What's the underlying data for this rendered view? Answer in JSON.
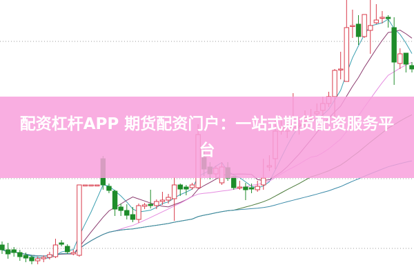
{
  "banner": {
    "title": "配资杠杆APP 期货配资门户：一站式期货配资服务平台"
  },
  "chart_data": {
    "type": "candlestick",
    "title": "",
    "ylim": [
      0,
      400
    ],
    "grid": "dotted horizontal",
    "colors": {
      "up": "#d83a4a",
      "down": "#1e8c2a",
      "ma_short": "#3a9fb0",
      "ma_mid": "#8b3a6e",
      "ma_long1": "#e58be0",
      "ma_long2": "#4a7a3a",
      "ma_long3": "#3a8aa8"
    },
    "moving_average_periods": [
      5,
      10,
      20,
      40,
      80
    ],
    "candles": [
      [
        45,
        38,
        50,
        32
      ],
      [
        38,
        32,
        48,
        25
      ],
      [
        38,
        34,
        42,
        28
      ],
      [
        34,
        28,
        38,
        22
      ],
      [
        30,
        26,
        34,
        20
      ],
      [
        27,
        22,
        30,
        17
      ],
      [
        22,
        25,
        28,
        17
      ],
      [
        25,
        27,
        30,
        20
      ],
      [
        27,
        31,
        35,
        24
      ],
      [
        28,
        45,
        54,
        26
      ],
      [
        48,
        46,
        52,
        43
      ],
      [
        43,
        35,
        46,
        32
      ],
      [
        32,
        34,
        38,
        30
      ],
      [
        30,
        132,
        132,
        28
      ],
      [
        132,
        132,
        132,
        132
      ],
      [
        132,
        132,
        132,
        132
      ],
      [
        132,
        132,
        132,
        132
      ],
      [
        170,
        132,
        174,
        125
      ],
      [
        130,
        124,
        134,
        120
      ],
      [
        123,
        97,
        125,
        87
      ],
      [
        100,
        95,
        105,
        87
      ],
      [
        95,
        88,
        104,
        82
      ],
      [
        89,
        82,
        100,
        78
      ],
      [
        82,
        102,
        105,
        77
      ],
      [
        101,
        103,
        106,
        97
      ],
      [
        104,
        102,
        125,
        98
      ],
      [
        102,
        108,
        111,
        97
      ],
      [
        108,
        110,
        122,
        103
      ],
      [
        110,
        114,
        119,
        105
      ],
      [
        112,
        132,
        143,
        80
      ],
      [
        132,
        126,
        134,
        116
      ],
      [
        129,
        126,
        132,
        117
      ],
      [
        128,
        132,
        135,
        125
      ],
      [
        128,
        205,
        220,
        126
      ],
      [
        172,
        155,
        190,
        145
      ],
      [
        158,
        148,
        165,
        140
      ],
      [
        148,
        156,
        160,
        142
      ],
      [
        135,
        158,
        165,
        132
      ],
      [
        157,
        142,
        165,
        138
      ],
      [
        144,
        128,
        145,
        125
      ],
      [
        128,
        129,
        138,
        125
      ],
      [
        129,
        125,
        135,
        110
      ],
      [
        128,
        126,
        134,
        120
      ],
      [
        125,
        130,
        138,
        122
      ],
      [
        132,
        142,
        170,
        125
      ],
      [
        158,
        160,
        175,
        152
      ],
      [
        170,
        210,
        228,
        155
      ],
      [
        210,
        215,
        228,
        205
      ],
      [
        210,
        217,
        225,
        200
      ],
      [
        215,
        220,
        265,
        210
      ],
      [
        218,
        220,
        230,
        205
      ],
      [
        225,
        230,
        240,
        215
      ],
      [
        227,
        230,
        242,
        220
      ],
      [
        235,
        238,
        250,
        232
      ],
      [
        240,
        250,
        260,
        230
      ],
      [
        250,
        260,
        267,
        245
      ],
      [
        260,
        298,
        300,
        225
      ],
      [
        300,
        300,
        325,
        285
      ],
      [
        282,
        360,
        400,
        282
      ],
      [
        363,
        363,
        386,
        345
      ],
      [
        365,
        347,
        378,
        335
      ],
      [
        347,
        379,
        379,
        345
      ],
      [
        356,
        363,
        400,
        322
      ],
      [
        367,
        371,
        394,
        365
      ],
      [
        374,
        375,
        384,
        366
      ],
      [
        375,
        373,
        378,
        360
      ],
      [
        360,
        310,
        375,
        277
      ],
      [
        308,
        322,
        330,
        300
      ],
      [
        323,
        307,
        323,
        295
      ],
      [
        305,
        300,
        310,
        295
      ]
    ]
  }
}
